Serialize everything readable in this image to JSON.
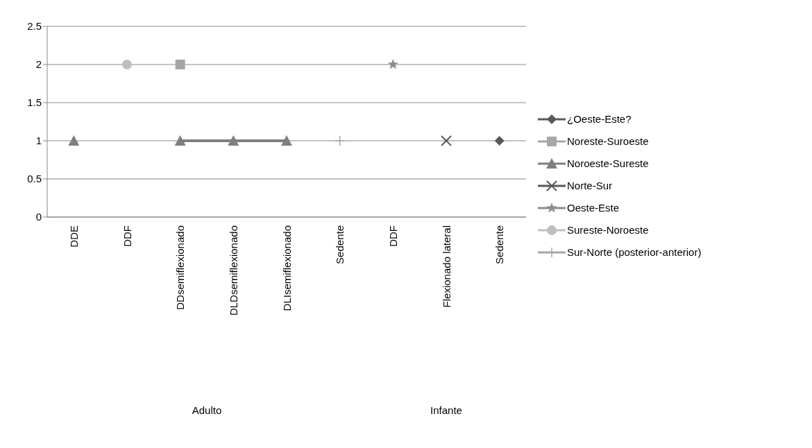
{
  "chart_data": {
    "type": "line",
    "categories": [
      "DDE",
      "DDF",
      "DDsemiflexionado",
      "DLDsemiflexionado",
      "DLIsemiflexionado",
      "Sedente",
      "DDF",
      "Flexionado lateral",
      "Sedente"
    ],
    "series": [
      {
        "name": "¿Oeste-Este?",
        "color": "#595959",
        "marker": "diamond",
        "values": [
          null,
          null,
          null,
          null,
          null,
          null,
          null,
          null,
          1
        ]
      },
      {
        "name": "Noreste-Suroeste",
        "color": "#a6a6a6",
        "marker": "square",
        "values": [
          null,
          null,
          2,
          null,
          null,
          null,
          null,
          null,
          null
        ]
      },
      {
        "name": "Noroeste-Sureste",
        "color": "#7f7f7f",
        "marker": "triangle",
        "values": [
          1,
          null,
          1,
          1,
          1,
          null,
          null,
          null,
          null
        ]
      },
      {
        "name": "Norte-Sur",
        "color": "#595959",
        "marker": "cross",
        "values": [
          null,
          null,
          null,
          null,
          null,
          null,
          null,
          1,
          null
        ]
      },
      {
        "name": "Oeste-Este",
        "color": "#8c8c8c",
        "marker": "star",
        "values": [
          null,
          null,
          null,
          null,
          null,
          null,
          2,
          null,
          null
        ]
      },
      {
        "name": "Sureste-Noroeste",
        "color": "#bfbfbf",
        "marker": "circle",
        "values": [
          null,
          2,
          null,
          null,
          null,
          null,
          null,
          null,
          null
        ]
      },
      {
        "name": "Sur-Norte (posterior-anterior)",
        "color": "#a6a6a6",
        "marker": "plus",
        "values": [
          null,
          null,
          null,
          null,
          null,
          1,
          null,
          null,
          null
        ]
      }
    ],
    "annotations": [
      "Adulto",
      "Infante"
    ],
    "ylim": [
      0,
      2.5
    ],
    "yticks": [
      0,
      0.5,
      1,
      1.5,
      2,
      2.5
    ],
    "grid": "y",
    "legend": "right"
  }
}
